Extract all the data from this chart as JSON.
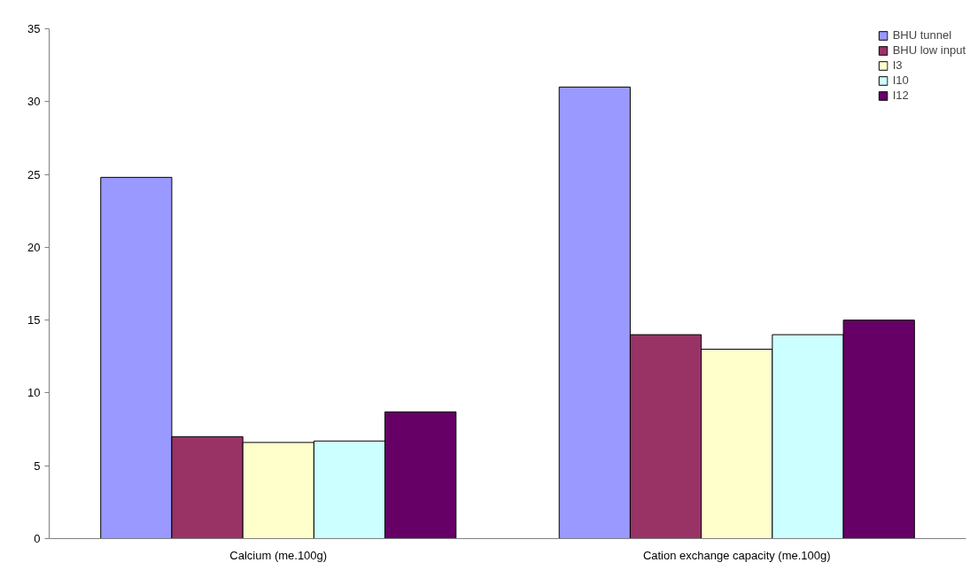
{
  "chart_data": {
    "type": "bar",
    "categories": [
      "Calcium (me.100g)",
      "Cation exchange capacity (me.100g)"
    ],
    "series": [
      {
        "name": "BHU tunnel",
        "color": "#9999ff",
        "values": [
          24.8,
          31
        ]
      },
      {
        "name": "BHU low input",
        "color": "#993366",
        "values": [
          7.0,
          14
        ]
      },
      {
        "name": "I3",
        "color": "#ffffcc",
        "values": [
          6.6,
          13
        ]
      },
      {
        "name": "I10",
        "color": "#ccffff",
        "values": [
          6.7,
          14
        ]
      },
      {
        "name": "I12",
        "color": "#660066",
        "values": [
          8.7,
          15
        ]
      }
    ],
    "ylim": [
      0,
      35
    ],
    "yticks": [
      0,
      5,
      10,
      15,
      20,
      25,
      30,
      35
    ],
    "grid": false,
    "legend": "top right"
  }
}
